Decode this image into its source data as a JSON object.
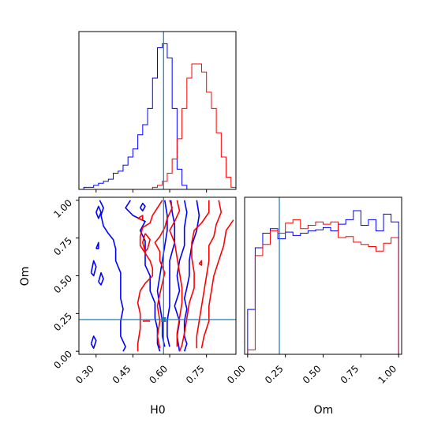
{
  "colors": {
    "series_a": "#0000ff",
    "series_b": "#ff0000",
    "truth": "#1f77b4"
  },
  "chart_data": {
    "type": "corner",
    "parameters": [
      "H0",
      "Om"
    ],
    "truth": {
      "H0": 0.575,
      "Om": 0.21
    },
    "series": [
      {
        "color": "#0000ff"
      },
      {
        "color": "#ff0000"
      }
    ],
    "hist_H0": {
      "xlim": [
        0.23,
        0.87
      ],
      "bins": [
        0.23,
        0.25,
        0.27,
        0.29,
        0.31,
        0.33,
        0.35,
        0.37,
        0.39,
        0.41,
        0.43,
        0.45,
        0.47,
        0.49,
        0.51,
        0.53,
        0.55,
        0.57,
        0.59,
        0.61,
        0.63,
        0.65,
        0.67,
        0.69,
        0.71,
        0.73,
        0.75,
        0.77,
        0.79,
        0.81,
        0.83,
        0.85,
        0.87
      ],
      "counts_blue": [
        0,
        1,
        1,
        2,
        3,
        4,
        5,
        8,
        9,
        12,
        16,
        20,
        27,
        32,
        40,
        55,
        70,
        72,
        65,
        40,
        10,
        2,
        0,
        0,
        0,
        0,
        0,
        0,
        0,
        0,
        0,
        0
      ],
      "counts_red": [
        0,
        0,
        0,
        0,
        0,
        0,
        0,
        0,
        0,
        0,
        0,
        0,
        0,
        0,
        0,
        1,
        2,
        4,
        8,
        15,
        25,
        40,
        55,
        62,
        62,
        58,
        48,
        40,
        28,
        16,
        6,
        1
      ],
      "ylim": [
        0,
        78
      ]
    },
    "hist_Om": {
      "xlim": [
        -0.02,
        1.02
      ],
      "bins": [
        0.0,
        0.05,
        0.1,
        0.15,
        0.2,
        0.25,
        0.3,
        0.35,
        0.4,
        0.45,
        0.5,
        0.55,
        0.6,
        0.65,
        0.7,
        0.75,
        0.8,
        0.85,
        0.9,
        0.95,
        1.0
      ],
      "counts_blue": [
        40,
        95,
        108,
        112,
        103,
        109,
        106,
        108,
        110,
        111,
        113,
        110,
        116,
        120,
        128,
        115,
        120,
        110,
        125,
        118
      ],
      "counts_red": [
        4,
        88,
        98,
        110,
        108,
        117,
        120,
        112,
        115,
        118,
        116,
        118,
        104,
        105,
        100,
        98,
        96,
        92,
        99,
        104
      ],
      "ylim": [
        0,
        140
      ]
    },
    "contour": {
      "xlim": [
        0.23,
        0.87
      ],
      "ylim": [
        -0.02,
        1.02
      ],
      "x_ticks": [
        "0.30",
        "0.45",
        "0.60",
        "0.75"
      ],
      "y_ticks": [
        "0.00",
        "0.25",
        "0.50",
        "0.75",
        "1.00"
      ],
      "xlabel": "H0",
      "ylabel": "Om",
      "blue_lines": [
        [
          [
            0.315,
            1.0
          ],
          [
            0.33,
            0.95
          ],
          [
            0.32,
            0.9
          ],
          [
            0.33,
            0.83
          ],
          [
            0.35,
            0.78
          ],
          [
            0.37,
            0.74
          ],
          [
            0.38,
            0.68
          ],
          [
            0.38,
            0.6
          ],
          [
            0.4,
            0.52
          ],
          [
            0.4,
            0.42
          ],
          [
            0.4,
            0.35
          ],
          [
            0.41,
            0.28
          ],
          [
            0.4,
            0.2
          ],
          [
            0.4,
            0.1
          ],
          [
            0.42,
            0.03
          ],
          [
            0.41,
            0.0
          ]
        ],
        [
          [
            0.44,
            1.0
          ],
          [
            0.42,
            0.95
          ],
          [
            0.45,
            0.9
          ],
          [
            0.5,
            0.86
          ],
          [
            0.48,
            0.8
          ],
          [
            0.5,
            0.73
          ],
          [
            0.5,
            0.65
          ],
          [
            0.5,
            0.57
          ],
          [
            0.52,
            0.5
          ],
          [
            0.52,
            0.4
          ],
          [
            0.54,
            0.32
          ],
          [
            0.54,
            0.22
          ],
          [
            0.55,
            0.15
          ],
          [
            0.55,
            0.05
          ],
          [
            0.56,
            0.0
          ]
        ],
        [
          [
            0.58,
            1.0
          ],
          [
            0.59,
            0.9
          ],
          [
            0.59,
            0.8
          ],
          [
            0.58,
            0.7
          ],
          [
            0.57,
            0.6
          ],
          [
            0.56,
            0.5
          ],
          [
            0.55,
            0.4
          ],
          [
            0.56,
            0.3
          ],
          [
            0.57,
            0.2
          ],
          [
            0.57,
            0.1
          ],
          [
            0.58,
            0.03
          ]
        ],
        [
          [
            0.605,
            1.0
          ],
          [
            0.61,
            0.92
          ],
          [
            0.62,
            0.84
          ],
          [
            0.62,
            0.72
          ],
          [
            0.6,
            0.6
          ],
          [
            0.6,
            0.5
          ],
          [
            0.6,
            0.42
          ],
          [
            0.6,
            0.3
          ],
          [
            0.59,
            0.2
          ],
          [
            0.59,
            0.1
          ],
          [
            0.6,
            0.03
          ]
        ],
        [
          [
            0.66,
            1.0
          ],
          [
            0.67,
            0.92
          ],
          [
            0.66,
            0.82
          ],
          [
            0.66,
            0.7
          ],
          [
            0.64,
            0.6
          ],
          [
            0.63,
            0.5
          ],
          [
            0.64,
            0.4
          ],
          [
            0.62,
            0.3
          ],
          [
            0.64,
            0.2
          ],
          [
            0.63,
            0.1
          ],
          [
            0.64,
            0.0
          ]
        ],
        [
          [
            0.71,
            1.0
          ],
          [
            0.72,
            0.9
          ],
          [
            0.71,
            0.8
          ],
          [
            0.69,
            0.7
          ],
          [
            0.68,
            0.6
          ],
          [
            0.68,
            0.5
          ],
          [
            0.67,
            0.42
          ],
          [
            0.66,
            0.35
          ],
          [
            0.67,
            0.28
          ],
          [
            0.66,
            0.2
          ],
          [
            0.66,
            0.1
          ],
          [
            0.67,
            0.05
          ],
          [
            0.66,
            0.0
          ]
        ],
        [
          [
            0.3,
            0.92
          ],
          [
            0.31,
            0.88
          ],
          [
            0.32,
            0.92
          ],
          [
            0.31,
            0.96
          ],
          [
            0.3,
            0.92
          ]
        ],
        [
          [
            0.28,
            0.52
          ],
          [
            0.29,
            0.6
          ],
          [
            0.3,
            0.56
          ],
          [
            0.29,
            0.5
          ],
          [
            0.28,
            0.52
          ]
        ],
        [
          [
            0.31,
            0.46
          ],
          [
            0.32,
            0.52
          ],
          [
            0.33,
            0.48
          ],
          [
            0.32,
            0.44
          ],
          [
            0.31,
            0.46
          ]
        ],
        [
          [
            0.28,
            0.05
          ],
          [
            0.29,
            0.1
          ],
          [
            0.3,
            0.07
          ],
          [
            0.29,
            0.02
          ],
          [
            0.28,
            0.05
          ]
        ],
        [
          [
            0.3,
            0.68
          ],
          [
            0.31,
            0.72
          ],
          [
            0.31,
            0.68
          ],
          [
            0.3,
            0.68
          ]
        ],
        [
          [
            0.48,
            0.95
          ],
          [
            0.49,
            0.98
          ],
          [
            0.5,
            0.96
          ],
          [
            0.49,
            0.93
          ],
          [
            0.48,
            0.95
          ]
        ]
      ],
      "red_lines": [
        [
          [
            0.57,
            1.0
          ],
          [
            0.55,
            0.95
          ],
          [
            0.53,
            0.9
          ],
          [
            0.52,
            0.85
          ],
          [
            0.49,
            0.82
          ],
          [
            0.48,
            0.76
          ],
          [
            0.48,
            0.7
          ],
          [
            0.5,
            0.65
          ],
          [
            0.52,
            0.6
          ],
          [
            0.53,
            0.55
          ],
          [
            0.53,
            0.5
          ],
          [
            0.5,
            0.45
          ],
          [
            0.48,
            0.4
          ],
          [
            0.47,
            0.32
          ],
          [
            0.48,
            0.25
          ],
          [
            0.48,
            0.15
          ],
          [
            0.47,
            0.05
          ],
          [
            0.47,
            0.0
          ]
        ],
        [
          [
            0.6,
            1.0
          ],
          [
            0.61,
            0.95
          ],
          [
            0.59,
            0.88
          ],
          [
            0.58,
            0.82
          ],
          [
            0.56,
            0.76
          ],
          [
            0.54,
            0.72
          ],
          [
            0.56,
            0.66
          ],
          [
            0.56,
            0.6
          ],
          [
            0.58,
            0.52
          ],
          [
            0.57,
            0.45
          ],
          [
            0.56,
            0.38
          ],
          [
            0.55,
            0.3
          ],
          [
            0.56,
            0.2
          ],
          [
            0.55,
            0.1
          ],
          [
            0.56,
            0.02
          ]
        ],
        [
          [
            0.63,
            1.0
          ],
          [
            0.64,
            0.93
          ],
          [
            0.62,
            0.86
          ],
          [
            0.6,
            0.8
          ],
          [
            0.62,
            0.72
          ],
          [
            0.63,
            0.62
          ],
          [
            0.64,
            0.52
          ],
          [
            0.65,
            0.42
          ],
          [
            0.65,
            0.32
          ],
          [
            0.64,
            0.22
          ],
          [
            0.63,
            0.12
          ],
          [
            0.63,
            0.03
          ]
        ],
        [
          [
            0.76,
            1.0
          ],
          [
            0.76,
            0.92
          ],
          [
            0.73,
            0.85
          ],
          [
            0.7,
            0.8
          ],
          [
            0.69,
            0.72
          ],
          [
            0.69,
            0.62
          ],
          [
            0.7,
            0.52
          ],
          [
            0.7,
            0.42
          ],
          [
            0.68,
            0.32
          ],
          [
            0.67,
            0.22
          ],
          [
            0.66,
            0.12
          ],
          [
            0.65,
            0.04
          ],
          [
            0.64,
            0.0
          ]
        ],
        [
          [
            0.8,
            1.0
          ],
          [
            0.81,
            0.92
          ],
          [
            0.79,
            0.84
          ],
          [
            0.78,
            0.76
          ],
          [
            0.76,
            0.7
          ],
          [
            0.76,
            0.6
          ],
          [
            0.75,
            0.5
          ],
          [
            0.74,
            0.4
          ],
          [
            0.73,
            0.3
          ],
          [
            0.72,
            0.2
          ],
          [
            0.71,
            0.1
          ],
          [
            0.71,
            0.02
          ]
        ],
        [
          [
            0.86,
            0.87
          ],
          [
            0.83,
            0.8
          ],
          [
            0.82,
            0.7
          ],
          [
            0.8,
            0.6
          ],
          [
            0.78,
            0.5
          ],
          [
            0.77,
            0.4
          ],
          [
            0.76,
            0.3
          ],
          [
            0.76,
            0.2
          ],
          [
            0.74,
            0.1
          ],
          [
            0.73,
            0.02
          ]
        ],
        [
          [
            0.5,
            0.78
          ],
          [
            0.49,
            0.72
          ],
          [
            0.5,
            0.66
          ],
          [
            0.51,
            0.68
          ],
          [
            0.52,
            0.74
          ],
          [
            0.5,
            0.78
          ]
        ],
        [
          [
            0.47,
            0.88
          ],
          [
            0.49,
            0.9
          ],
          [
            0.49,
            0.87
          ],
          [
            0.47,
            0.88
          ]
        ],
        [
          [
            0.72,
            0.58
          ],
          [
            0.73,
            0.6
          ],
          [
            0.73,
            0.57
          ],
          [
            0.72,
            0.58
          ]
        ],
        [
          [
            0.49,
            0.2
          ],
          [
            0.52,
            0.2
          ]
        ]
      ]
    }
  }
}
